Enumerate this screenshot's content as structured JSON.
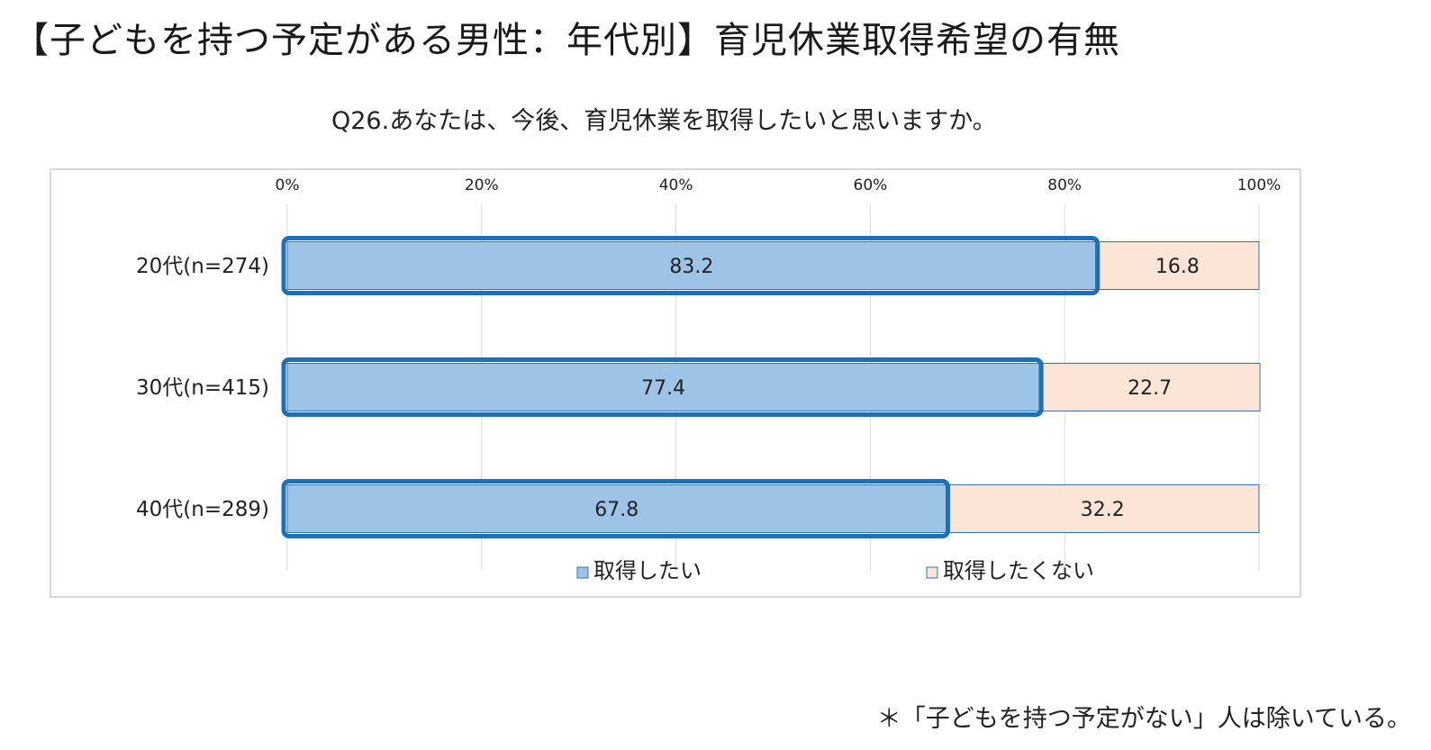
{
  "title": "【子どもを持つ予定がある男性：年代別】育児休業取得希望の有無",
  "question": "Q26.あなたは、今後、育児休業を取得したいと思いますか。",
  "footnote": "＊「子どもを持つ予定がない」人は除いている。",
  "colors": {
    "want": "#9dc3e6",
    "not_want": "#fbe5d6",
    "highlight_border": "#1f6fb8",
    "segment_border": "#2e75b6",
    "grid": "#d9d9d9"
  },
  "chart_data": {
    "type": "bar",
    "orientation": "horizontal",
    "stacked": true,
    "categories": [
      "20代(n=274)",
      "30代(n=415)",
      "40代(n=289)"
    ],
    "series": [
      {
        "name": "取得したい",
        "values": [
          83.2,
          77.4,
          67.8
        ]
      },
      {
        "name": "取得したくない",
        "values": [
          16.8,
          22.7,
          32.2
        ]
      }
    ],
    "data_labels": [
      [
        "83.2",
        "77.4",
        "67.8"
      ],
      [
        "16.8",
        "22.7",
        "32.2"
      ]
    ],
    "xlim": [
      0,
      100
    ],
    "x_ticks": [
      "0%",
      "20%",
      "40%",
      "60%",
      "80%",
      "100%"
    ],
    "x_axis_position": "top",
    "grid": true,
    "legend_position": "bottom",
    "highlighted_series": "取得したい"
  }
}
